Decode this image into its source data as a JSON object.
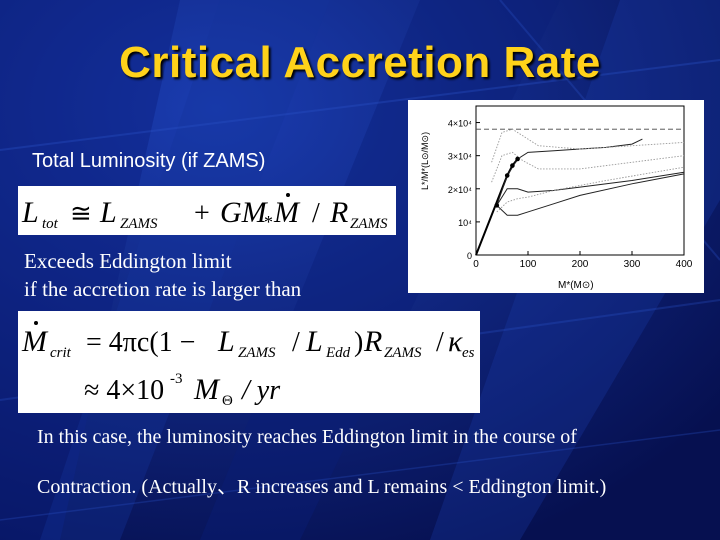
{
  "slide": {
    "title": "Critical Accretion Rate",
    "subhead": "Total Luminosity (if ZAMS)",
    "line1": "Exceeds Eddington limit",
    "line2": "if the accretion rate is larger than",
    "line3": "In this case, the luminosity reaches Eddington limit in the course of",
    "line4": "Contraction. (Actually、R increases and L remains < Eddington limit.)"
  },
  "equation1": {
    "L": "L",
    "tot": "tot",
    "approx": "≅",
    "L2": "L",
    "zams": "ZAMS",
    "plus": "+",
    "GM": "GM",
    "star": "*",
    "Mdot": "M",
    "slash": "/",
    "R": "R",
    "zams2": "ZAMS"
  },
  "equation2": {
    "M": "M",
    "crit": "crit",
    "eq": "= 4πc(1 − ",
    "L": "L",
    "zams": "ZAMS",
    "sl1": "/",
    "L2": "L",
    "edd": "Edd",
    "paren": ")",
    "R": "R",
    "zams2": "ZAMS",
    "sl2": "/",
    "kappa": "κ",
    "es": "es",
    "approx": "≈ 4×10",
    "exp": "-3",
    "Msun": "M",
    "sun": "Θ",
    "peryr": "/ yr"
  },
  "chart_data": {
    "type": "line",
    "xlabel": "M*(M⊙)",
    "ylabel": "L*/M*(L⊙/M⊙)",
    "xlim": [
      0,
      400
    ],
    "ylim": [
      0,
      45000
    ],
    "xticks": [
      "0",
      "100",
      "200",
      "300",
      "400"
    ],
    "yticks": [
      "0",
      "10⁴",
      "2×10⁴",
      "3×10⁴",
      "4×10⁴"
    ],
    "eddington_level": 38000,
    "series": [
      {
        "style": "solid-thick",
        "x": [
          0,
          10,
          20,
          30,
          40,
          50,
          60,
          70,
          80
        ],
        "y": [
          0,
          4000,
          8000,
          12000,
          16000,
          20000,
          24000,
          27000,
          29000
        ]
      },
      {
        "style": "solid",
        "x": [
          40,
          60,
          80,
          100,
          150,
          200,
          250,
          300,
          320
        ],
        "y": [
          15000,
          24000,
          29000,
          31000,
          31500,
          32000,
          32500,
          33500,
          35000
        ]
      },
      {
        "style": "solid",
        "x": [
          40,
          60,
          80,
          100,
          150,
          200,
          300,
          400
        ],
        "y": [
          15000,
          20000,
          20000,
          19000,
          19500,
          20500,
          22500,
          25000
        ]
      },
      {
        "style": "solid",
        "x": [
          40,
          60,
          80,
          100,
          150,
          200,
          300,
          400
        ],
        "y": [
          15000,
          12000,
          12000,
          13000,
          15500,
          18000,
          21500,
          24500
        ]
      },
      {
        "style": "dotted",
        "x": [
          30,
          50,
          70,
          90,
          120,
          200,
          300,
          400
        ],
        "y": [
          28000,
          37000,
          38000,
          36000,
          33000,
          32000,
          33000,
          34000
        ]
      },
      {
        "style": "dotted",
        "x": [
          30,
          50,
          70,
          90,
          120,
          200,
          300,
          400
        ],
        "y": [
          22000,
          30000,
          31000,
          28500,
          26000,
          26000,
          28000,
          30000
        ]
      },
      {
        "style": "dotted",
        "x": [
          40,
          60,
          80,
          100,
          150,
          250,
          400
        ],
        "y": [
          13000,
          16000,
          17000,
          17500,
          19500,
          22500,
          26500
        ]
      }
    ],
    "markers": {
      "x": [
        40,
        60,
        70,
        80
      ],
      "y": [
        15000,
        24000,
        27000,
        29000
      ]
    }
  }
}
